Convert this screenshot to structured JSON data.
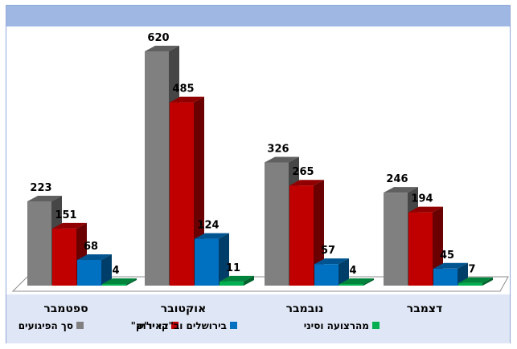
{
  "chart_data": {
    "type": "bar",
    "title": "",
    "xlabel": "",
    "ylabel": "",
    "categories": [
      "ספטמבר",
      "אוקטובר",
      "נובמבר",
      "דצמבר"
    ],
    "series": [
      {
        "name": "סך הפיגועים",
        "color": "#808080",
        "values": [
          223,
          620,
          326,
          246
        ]
      },
      {
        "name": "באיו\"ש",
        "color": "#c00000",
        "values": [
          151,
          485,
          265,
          194
        ]
      },
      {
        "name": "בירושלים וב\"קו ירוק\"",
        "color": "#0070c0",
        "values": [
          68,
          124,
          57,
          45
        ]
      },
      {
        "name": "מהרצועה וסיני",
        "color": "#00b050",
        "values": [
          4,
          11,
          4,
          7
        ]
      }
    ],
    "ylim": [
      0,
      620
    ],
    "grid": false,
    "legend_position": "bottom",
    "data_labels": true,
    "style": "3d-clustered-column"
  }
}
